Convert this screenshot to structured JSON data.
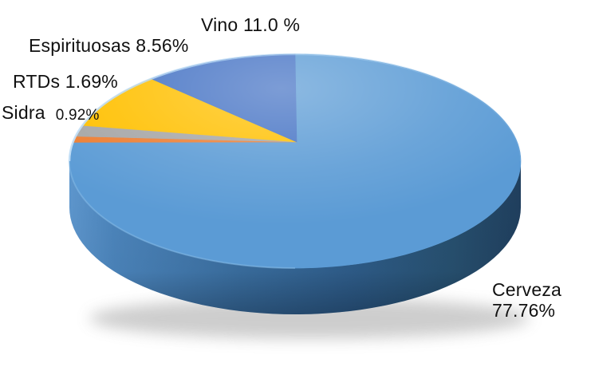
{
  "chart_data": {
    "type": "pie",
    "style": "3d-perspective, no legend, outside text labels, white background",
    "title": "",
    "unit": "%",
    "slices_clockwise_from_top": [
      {
        "name": "Cerveza",
        "value": 77.76,
        "color": "#5B9BD5"
      },
      {
        "name": "Sidra",
        "value": 0.92,
        "color": "#ED7D31"
      },
      {
        "name": "RTDs",
        "value": 1.69,
        "color": "#A6A6A6"
      },
      {
        "name": "Espirituosas",
        "value": 8.56,
        "color": "#FFC000"
      },
      {
        "name": "Vino",
        "value": 11.0,
        "color": "#4472C4"
      }
    ]
  },
  "labels": {
    "vino": "Vino 11.0 %",
    "espirituosas": "Espirituosas 8.56%",
    "rtds": "RTDs 1.69%",
    "sidra_name": "Sidra",
    "sidra_value": "0.92%",
    "cerveza_line1": "Cerveza",
    "cerveza_line2": "77.76%"
  },
  "colors": {
    "background": "#FFFFFF",
    "text": "#111111",
    "side_wall_left": "#5E97CE",
    "side_wall_right": "#203F5E"
  }
}
